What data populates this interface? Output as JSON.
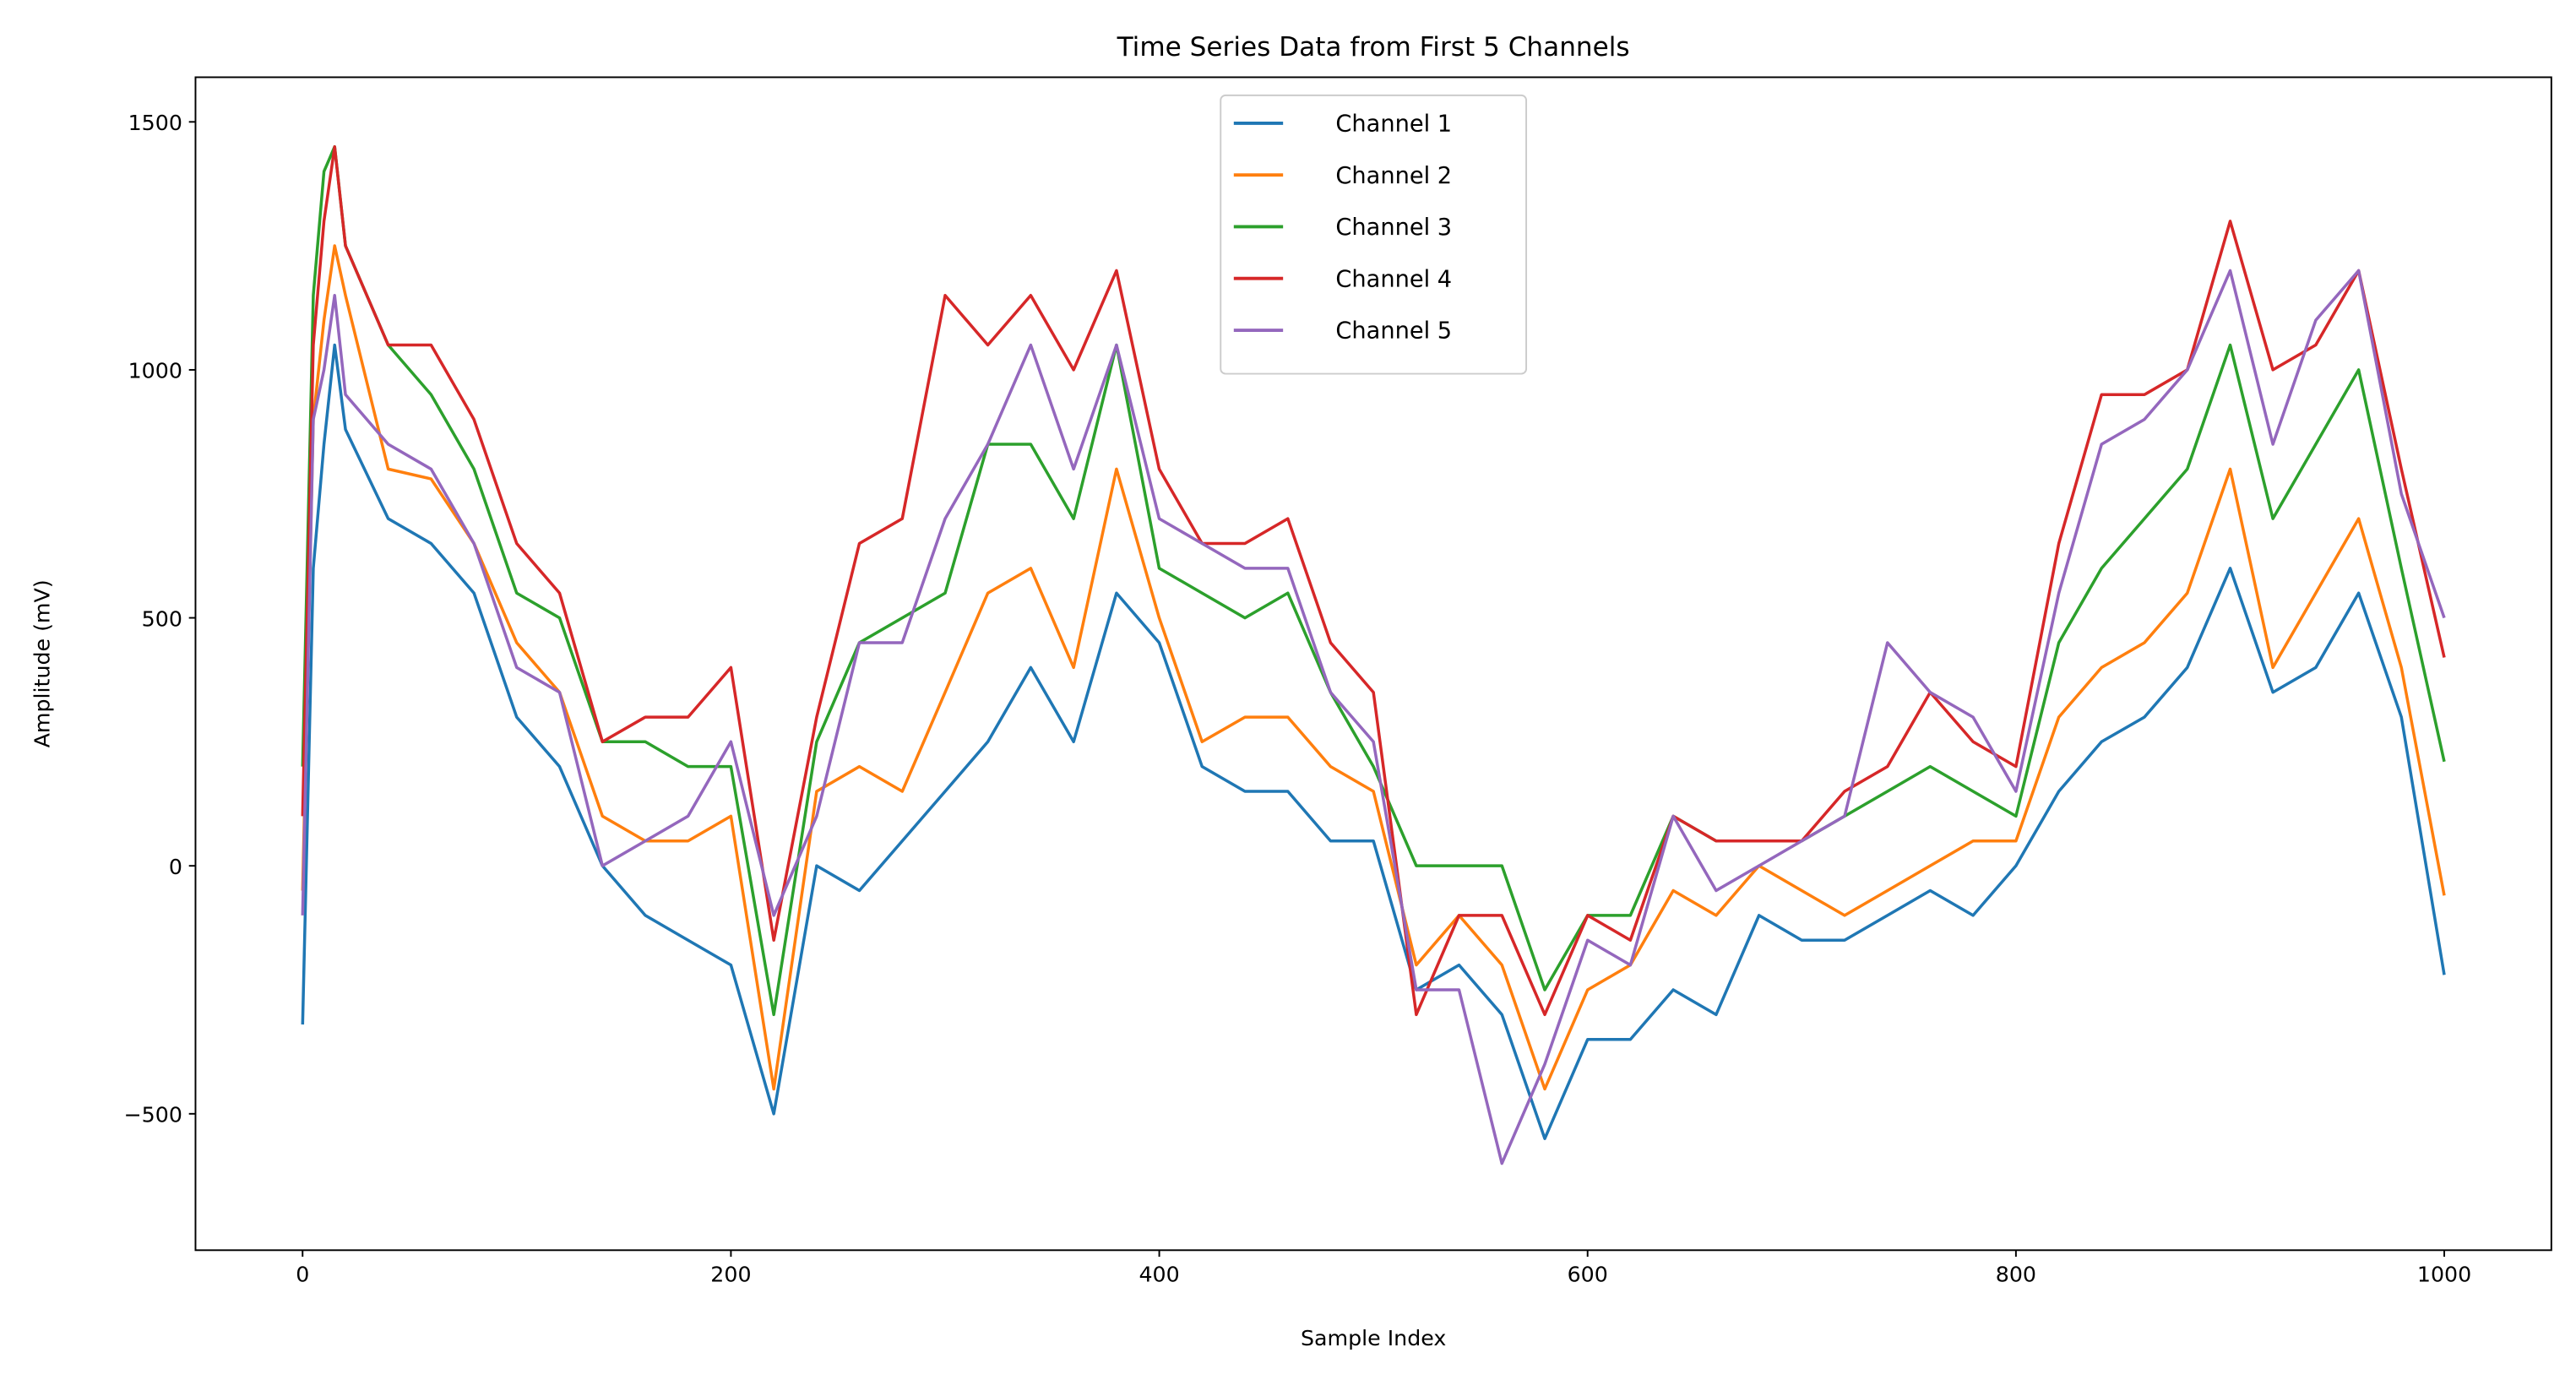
{
  "chart_data": {
    "type": "line",
    "title": "Time Series Data from First 5 Channels",
    "x_label": "Sample Index",
    "y_label": "Amplitude (mV)",
    "xlim": [
      -50,
      1050
    ],
    "ylim": [
      -775,
      1590
    ],
    "xticks": [
      0,
      200,
      400,
      600,
      800,
      1000
    ],
    "yticks": [
      {
        "value": -500,
        "label": "−500"
      },
      0,
      500,
      1000,
      1500
    ],
    "legend": "upper center",
    "x": [
      0,
      5,
      10,
      15,
      20,
      40,
      60,
      80,
      100,
      120,
      140,
      160,
      180,
      200,
      220,
      240,
      260,
      280,
      300,
      320,
      340,
      360,
      380,
      400,
      420,
      440,
      460,
      480,
      500,
      520,
      540,
      560,
      580,
      600,
      620,
      640,
      660,
      680,
      700,
      720,
      740,
      760,
      780,
      800,
      820,
      840,
      860,
      880,
      900,
      920,
      940,
      960,
      980,
      1000
    ],
    "series": [
      {
        "name": "Channel 1",
        "color": "#1f77b4",
        "values": [
          -320,
          600,
          850,
          1050,
          880,
          700,
          650,
          550,
          300,
          200,
          0,
          -100,
          -150,
          -200,
          -500,
          0,
          -50,
          50,
          150,
          250,
          400,
          250,
          550,
          450,
          200,
          150,
          150,
          50,
          50,
          -250,
          -200,
          -300,
          -550,
          -350,
          -350,
          -250,
          -300,
          -100,
          -150,
          -150,
          -100,
          -50,
          -100,
          0,
          150,
          250,
          300,
          400,
          600,
          350,
          400,
          550,
          300,
          -220
        ]
      },
      {
        "name": "Channel 2",
        "color": "#ff7f0e",
        "values": [
          -50,
          900,
          1100,
          1250,
          1150,
          800,
          780,
          650,
          450,
          350,
          100,
          50,
          50,
          100,
          -450,
          150,
          200,
          150,
          350,
          550,
          600,
          400,
          800,
          500,
          250,
          300,
          300,
          200,
          150,
          -200,
          -100,
          -200,
          -450,
          -250,
          -200,
          -50,
          -100,
          0,
          -50,
          -100,
          -50,
          0,
          50,
          50,
          300,
          400,
          450,
          550,
          800,
          400,
          550,
          700,
          400,
          -60
        ]
      },
      {
        "name": "Channel 3",
        "color": "#2ca02c",
        "values": [
          200,
          1150,
          1400,
          1450,
          1250,
          1050,
          950,
          800,
          550,
          500,
          250,
          250,
          200,
          200,
          -300,
          250,
          450,
          500,
          550,
          850,
          850,
          700,
          1050,
          600,
          550,
          500,
          550,
          350,
          200,
          0,
          0,
          0,
          -250,
          -100,
          -100,
          100,
          50,
          50,
          50,
          100,
          150,
          200,
          150,
          100,
          450,
          600,
          700,
          800,
          1050,
          700,
          850,
          1000,
          600,
          210
        ]
      },
      {
        "name": "Channel 4",
        "color": "#d62728",
        "values": [
          100,
          1050,
          1300,
          1450,
          1250,
          1050,
          1050,
          900,
          650,
          550,
          250,
          300,
          300,
          400,
          -150,
          300,
          650,
          700,
          1150,
          1050,
          1150,
          1000,
          1200,
          800,
          650,
          650,
          700,
          450,
          350,
          -300,
          -100,
          -100,
          -300,
          -100,
          -150,
          100,
          50,
          50,
          50,
          150,
          200,
          350,
          250,
          200,
          650,
          950,
          950,
          1000,
          1300,
          1000,
          1050,
          1200,
          800,
          420
        ]
      },
      {
        "name": "Channel 5",
        "color": "#9467bd",
        "values": [
          -100,
          900,
          1000,
          1150,
          950,
          850,
          800,
          650,
          400,
          350,
          0,
          50,
          100,
          250,
          -100,
          100,
          450,
          450,
          700,
          850,
          1050,
          800,
          1050,
          700,
          650,
          600,
          600,
          350,
          250,
          -250,
          -250,
          -600,
          -400,
          -150,
          -200,
          100,
          -50,
          0,
          50,
          100,
          450,
          350,
          300,
          150,
          550,
          850,
          900,
          1000,
          1200,
          850,
          1100,
          1200,
          750,
          500
        ]
      }
    ]
  }
}
